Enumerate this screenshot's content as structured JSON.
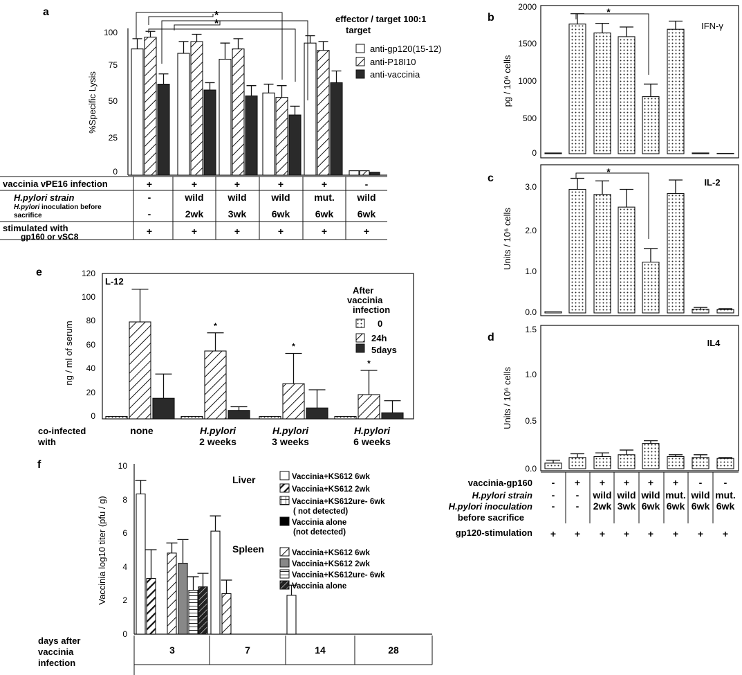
{
  "colors": {
    "ink": "#111111",
    "dark": "#2a2a2a",
    "gray": "#888888"
  },
  "chart_data": [
    {
      "id": "a",
      "panel_label": "a",
      "type": "bar",
      "ylabel": "%Specific Lysis",
      "ylim": [
        0,
        100
      ],
      "yticks": [
        "0",
        "25",
        "50",
        "75",
        "100"
      ],
      "legend_title": "effector / target 100:1",
      "legend_subtitle": "target",
      "significance_mark": "*",
      "series": [
        {
          "name": "anti-gp120(15-12)",
          "fill": "white",
          "values": [
            86,
            83,
            79,
            56,
            90,
            3
          ],
          "errors": [
            7,
            8,
            11,
            6,
            5,
            0
          ]
        },
        {
          "name": "anti-P18I10",
          "fill": "hatch",
          "values": [
            94,
            91,
            86,
            53,
            85,
            3
          ],
          "errors": [
            4,
            5,
            7,
            8,
            6,
            0
          ]
        },
        {
          "name": "anti-vaccinia",
          "fill": "dark",
          "values": [
            62,
            58,
            54,
            41,
            63,
            2
          ],
          "errors": [
            7,
            5,
            7,
            6,
            8,
            0
          ]
        }
      ],
      "table": {
        "rows": [
          {
            "label": "vaccinia vPE16 infection",
            "cells": [
              "+",
              "+",
              "+",
              "+",
              "+",
              "-"
            ]
          },
          {
            "label": "H.pylori  strain",
            "cells": [
              "-",
              "wild",
              "wild",
              "wild",
              "mut.",
              "wild"
            ]
          },
          {
            "label": "H.pylori  inoculation before sacrifice",
            "cells": [
              "-",
              "2wk",
              "3wk",
              "6wk",
              "6wk",
              "6wk"
            ]
          },
          {
            "label": "stimulated with gp160 or vSC8",
            "cells": [
              "+",
              "+",
              "+",
              "+",
              "+",
              "+"
            ]
          }
        ]
      }
    },
    {
      "id": "b",
      "panel_label": "b",
      "type": "bar",
      "title": "IFN-γ",
      "ylabel": "pg / 10⁶ cells",
      "ylim": [
        0,
        2000
      ],
      "yticks": [
        "0",
        "500",
        "1000",
        "1500",
        "2000"
      ],
      "significance_mark": "*",
      "values": [
        10,
        1750,
        1630,
        1580,
        770,
        1680,
        10,
        5
      ],
      "errors": [
        0,
        140,
        130,
        130,
        170,
        110,
        0,
        0
      ]
    },
    {
      "id": "c",
      "panel_label": "c",
      "type": "bar",
      "title": "IL-2",
      "ylabel": "Units / 10⁶ cells",
      "ylim": [
        0,
        3.5
      ],
      "yticks": [
        "0.0",
        "1.0",
        "2.0",
        "3.0"
      ],
      "significance_mark": "*",
      "values": [
        0.03,
        2.92,
        2.8,
        2.5,
        1.2,
        2.82,
        0.09,
        0.08
      ],
      "errors": [
        0,
        0.26,
        0.32,
        0.42,
        0.32,
        0.32,
        0.04,
        0.02
      ]
    },
    {
      "id": "d",
      "panel_label": "d",
      "type": "bar",
      "title": "IL4",
      "ylabel": "Units / 10⁶ cells",
      "ylim": [
        0,
        1.5
      ],
      "yticks": [
        "0.0",
        "0.5",
        "1.0",
        "1.5"
      ],
      "values": [
        0.06,
        0.12,
        0.13,
        0.15,
        0.27,
        0.13,
        0.12,
        0.11
      ],
      "errors": [
        0.03,
        0.04,
        0.04,
        0.05,
        0.03,
        0.02,
        0.03,
        0.01
      ],
      "table": {
        "rows": [
          {
            "label": "vaccinia-gp160",
            "cells": [
              "-",
              "+",
              "+",
              "+",
              "+",
              "+",
              "-",
              "-"
            ]
          },
          {
            "label": "H.pylori  strain",
            "cells": [
              "-",
              "-",
              "wild",
              "wild",
              "wild",
              "mut.",
              "wild",
              "mut."
            ]
          },
          {
            "label": "H.pylori  inoculation",
            "cells": [
              "-",
              "-",
              "2wk",
              "3wk",
              "6wk",
              "6wk",
              "6wk",
              "6wk"
            ]
          },
          {
            "label": "before sacrifice",
            "cells": [
              "",
              "",
              "",
              "",
              "",
              "",
              "",
              ""
            ]
          },
          {
            "label": "gp120-stimulation",
            "cells": [
              "+",
              "+",
              "+",
              "+",
              "+",
              "+",
              "+",
              "+"
            ]
          }
        ]
      }
    },
    {
      "id": "e",
      "panel_label": "e",
      "type": "bar",
      "title": "L-12",
      "ylabel": "ng / ml of serum",
      "ylim": [
        0,
        120
      ],
      "yticks": [
        "0",
        "20",
        "40",
        "60",
        "80",
        "100",
        "120"
      ],
      "legend_title": "After vaccinia infection",
      "xlabel": "co-infected with",
      "categories": [
        {
          "line1": "none",
          "line2": ""
        },
        {
          "line1": "H.pylori",
          "line2": "2 weeks"
        },
        {
          "line1": "H.pylori",
          "line2": "3 weeks"
        },
        {
          "line1": "H.pylori",
          "line2": "6 weeks"
        }
      ],
      "significance_mark": "*",
      "series": [
        {
          "name": "0",
          "fill": "dots",
          "values": [
            2,
            2,
            2,
            2
          ],
          "errors": [
            0,
            0,
            0,
            0
          ]
        },
        {
          "name": "24h",
          "fill": "hatch",
          "values": [
            80,
            56,
            29,
            20
          ],
          "errors": [
            27,
            15,
            25,
            20
          ]
        },
        {
          "name": "5days",
          "fill": "dark",
          "values": [
            17,
            7,
            9,
            5
          ],
          "errors": [
            20,
            3,
            15,
            10
          ]
        }
      ]
    },
    {
      "id": "f",
      "panel_label": "f",
      "type": "bar",
      "ylabel": "Vaccinia log10 titer  (pfu / g)",
      "ylim": [
        0,
        10
      ],
      "yticks": [
        "0",
        "2",
        "4",
        "6",
        "8",
        "10"
      ],
      "xlabel": "days after vaccinia infection",
      "categories": [
        "3",
        "7",
        "14",
        "28"
      ],
      "legend_groups": [
        {
          "title": "Liver",
          "items": [
            {
              "name": "Vaccinia+KS612 6wk",
              "fill": "white"
            },
            {
              "name": "Vaccinia+KS612 2wk",
              "fill": "bold-hatch"
            },
            {
              "name": "Vaccinia+KS612ure-  6wk",
              "note": "( not detected)",
              "fill": "grid"
            },
            {
              "name": "Vaccinia alone",
              "note": "(not detected)",
              "fill": "black"
            }
          ]
        },
        {
          "title": "Spleen",
          "items": [
            {
              "name": "Vaccinia+KS612 6wk",
              "fill": "hatch"
            },
            {
              "name": "Vaccinia+KS612 2wk",
              "fill": "gray"
            },
            {
              "name": "Vaccinia+KS612ure-  6wk",
              "fill": "hstripes"
            },
            {
              "name": "Vaccinia alone",
              "fill": "stripe-dark"
            }
          ]
        }
      ],
      "bars": [
        {
          "day": "3",
          "label": "Liver: Vaccinia+KS612 6wk",
          "fill": "white",
          "value": 8.3,
          "error": 0.8
        },
        {
          "day": "3",
          "label": "Liver: Vaccinia+KS612 2wk",
          "fill": "bold-hatch",
          "value": 3.3,
          "error": 1.7
        },
        {
          "day": "3",
          "label": "Spleen: Vaccinia+KS612 6wk",
          "fill": "hatch",
          "value": 4.8,
          "error": 0.6
        },
        {
          "day": "3",
          "label": "Spleen: Vaccinia+KS612 2wk",
          "fill": "gray",
          "value": 4.2,
          "error": 1.4
        },
        {
          "day": "3",
          "label": "Spleen: Vaccinia+KS612ure-  6wk",
          "fill": "hstripes",
          "value": 2.6,
          "error": 0.8
        },
        {
          "day": "3",
          "label": "Spleen: Vaccinia alone",
          "fill": "stripe-dark",
          "value": 2.8,
          "error": 0.8
        },
        {
          "day": "7",
          "label": "Liver: Vaccinia+KS612 6wk",
          "fill": "white",
          "value": 6.1,
          "error": 0.9
        },
        {
          "day": "7",
          "label": "Spleen: Vaccinia+KS612 6wk",
          "fill": "hatch",
          "value": 2.4,
          "error": 0.8
        },
        {
          "day": "14",
          "label": "Liver: Vaccinia+KS612 6wk",
          "fill": "white",
          "value": 2.3,
          "error": 0.6
        }
      ]
    }
  ]
}
